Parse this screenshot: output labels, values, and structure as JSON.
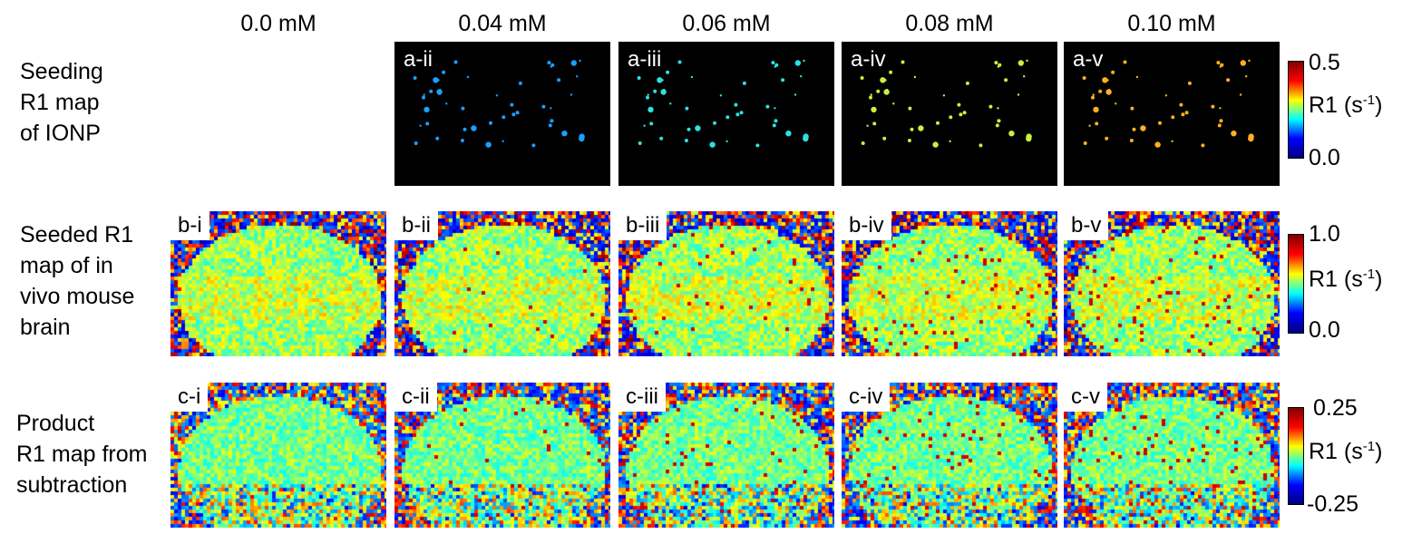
{
  "columns": [
    "0.0 mM",
    "0.04 mM",
    "0.06 mM",
    "0.08 mM",
    "0.10 mM"
  ],
  "rows": [
    {
      "label_lines": [
        "Seeding",
        "R1 map",
        "of IONP"
      ],
      "panel_tags": [
        "",
        "a-ii",
        "a-iii",
        "a-iv",
        "a-v"
      ],
      "colorbar": {
        "max": "0.5",
        "min": "0.0",
        "unit_prefix": "R1 (s",
        "unit_exp": "-1",
        "unit_suffix": ")"
      }
    },
    {
      "label_lines": [
        "Seeded  R1",
        "map of in",
        "vivo mouse",
        "brain"
      ],
      "panel_tags": [
        "b-i",
        "b-ii",
        "b-iii",
        "b-iv",
        "b-v"
      ],
      "colorbar": {
        "max": "1.0",
        "min": "0.0",
        "unit_prefix": "R1 (s",
        "unit_exp": "-1",
        "unit_suffix": ")"
      }
    },
    {
      "label_lines": [
        "Product",
        "R1 map from",
        "subtraction"
      ],
      "panel_tags": [
        "c-i",
        "c-ii",
        "c-iii",
        "c-iv",
        "c-v"
      ],
      "colorbar": {
        "max": "0.25",
        "min": "-0.25",
        "unit_prefix": "R1 (s",
        "unit_exp": "-1",
        "unit_suffix": ")"
      }
    }
  ],
  "colors": {
    "seed_dots": [
      "#000000",
      "#1aa0ff",
      "#2ee0e0",
      "#c8f040",
      "#ffb020"
    ],
    "colormap": "jet"
  }
}
